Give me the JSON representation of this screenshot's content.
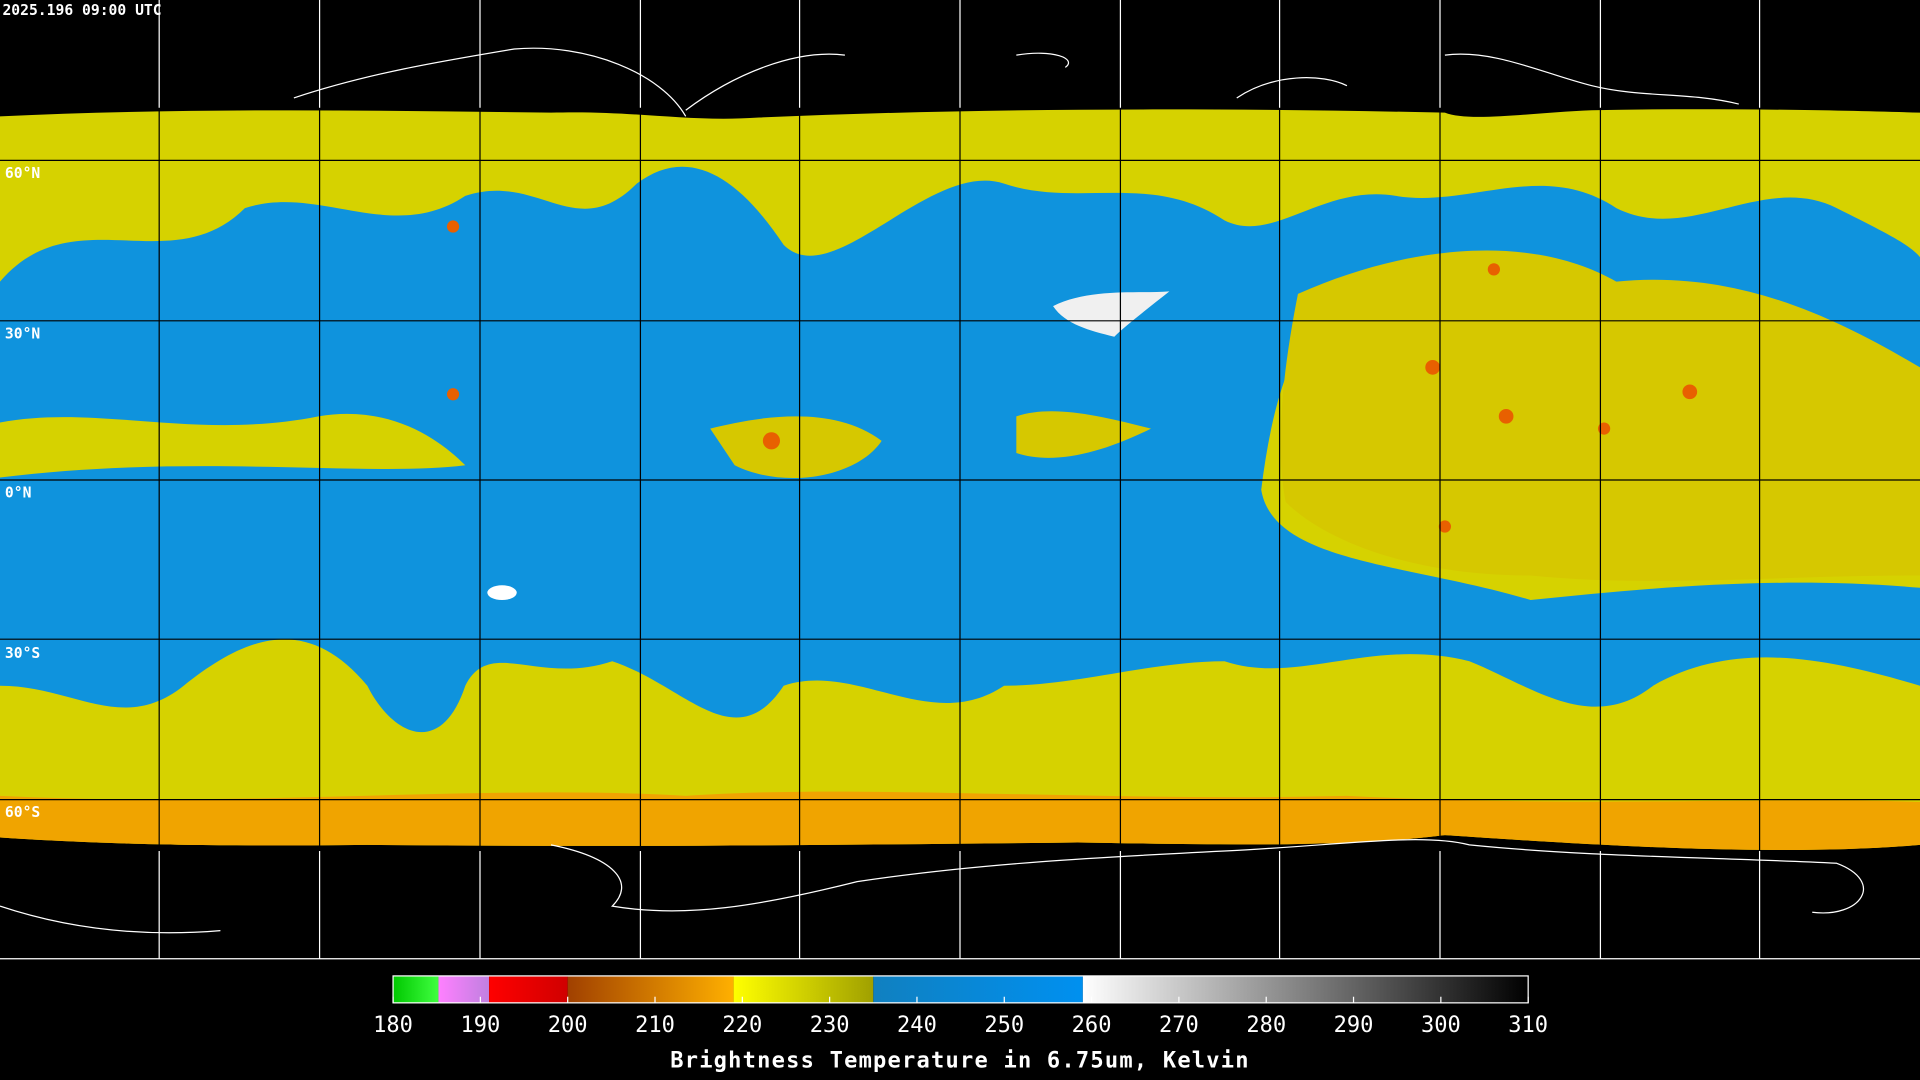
{
  "header": {
    "timestamp": "2025.196 09:00 UTC"
  },
  "map": {
    "lat_labels": [
      "60°N",
      "30°N",
      "0°N",
      "30°S",
      "60°S"
    ]
  },
  "colorbar": {
    "title": "Brightness Temperature in 6.75um, Kelvin",
    "range": [
      180,
      310
    ],
    "ticks": [
      180,
      190,
      200,
      210,
      220,
      230,
      240,
      250,
      260,
      270,
      280,
      290,
      300,
      310
    ],
    "segments": [
      {
        "from": 180,
        "to": 185.2,
        "color_start": "#00c800",
        "color_end": "#40ff40"
      },
      {
        "from": 185.2,
        "to": 191,
        "color_start": "#ff80ff",
        "color_end": "#c080e0"
      },
      {
        "from": 191,
        "to": 200,
        "color_start": "#ff0000",
        "color_end": "#d00000"
      },
      {
        "from": 200,
        "to": 219,
        "color_start": "#a04000",
        "color_end": "#ffb000"
      },
      {
        "from": 219,
        "to": 235,
        "color_start": "#ffff00",
        "color_end": "#a0a000"
      },
      {
        "from": 235,
        "to": 259,
        "color_start": "#1080c0",
        "color_end": "#0090f0"
      },
      {
        "from": 259,
        "to": 310,
        "color_start": "#ffffff",
        "color_end": "#000000"
      }
    ]
  }
}
